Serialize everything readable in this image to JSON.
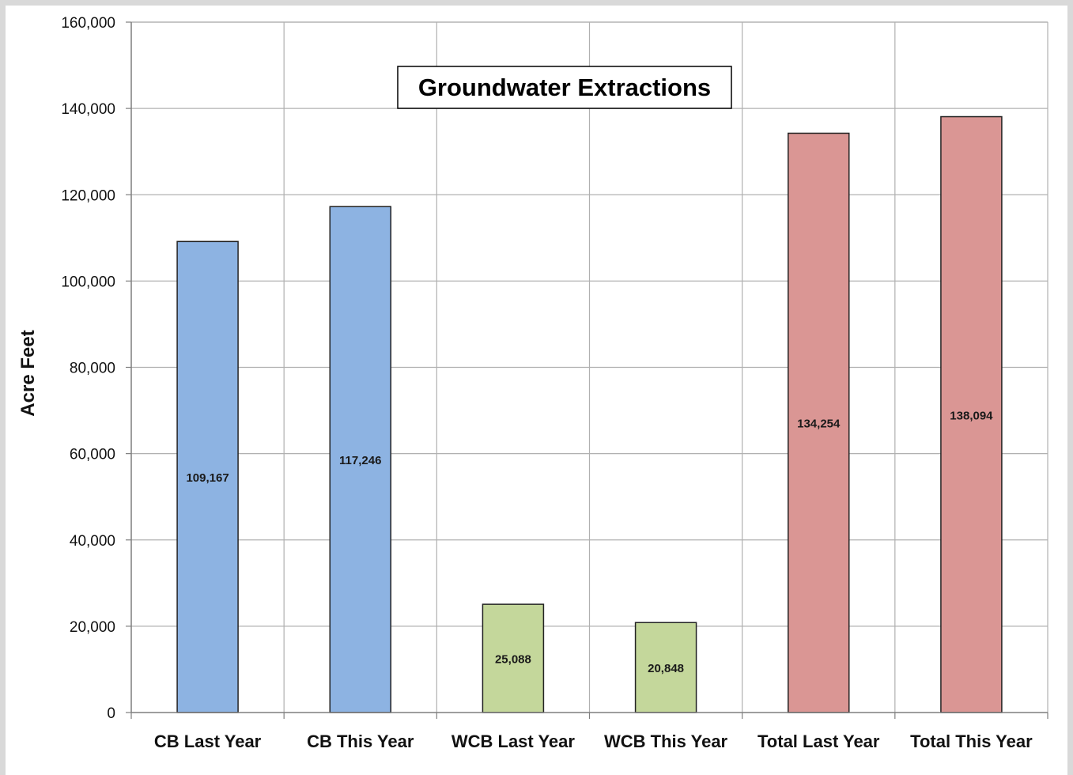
{
  "chart_data": {
    "type": "bar",
    "title": "Groundwater Extractions",
    "xlabel": "",
    "ylabel": "Acre Feet",
    "categories": [
      "CB Last Year",
      "CB This Year",
      "WCB Last Year",
      "WCB This Year",
      "Total Last Year",
      "Total This Year"
    ],
    "values": [
      109167,
      117246,
      25088,
      20848,
      134254,
      138094
    ],
    "value_labels": [
      "109,167",
      "117,246",
      "25,088",
      "20,848",
      "134,254",
      "138,094"
    ],
    "bar_colors": [
      "#8db3e2",
      "#8db3e2",
      "#c4d79b",
      "#c4d79b",
      "#da9694",
      "#da9694"
    ],
    "ylim": [
      0,
      160000
    ],
    "y_ticks": [
      0,
      20000,
      40000,
      60000,
      80000,
      100000,
      120000,
      140000,
      160000
    ],
    "y_tick_labels": [
      "0",
      "20,000",
      "40,000",
      "60,000",
      "80,000",
      "100,000",
      "120,000",
      "140,000",
      "160,000"
    ],
    "grid": true,
    "legend": "none"
  }
}
